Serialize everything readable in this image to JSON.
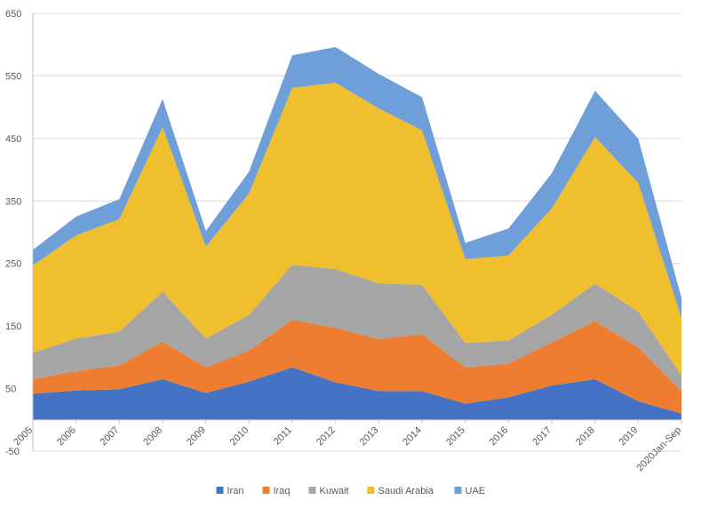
{
  "chart_data": {
    "type": "area",
    "stacked": true,
    "categories": [
      "2005",
      "2006",
      "2007",
      "2008",
      "2009",
      "2010",
      "2011",
      "2012",
      "2013",
      "2014",
      "2015",
      "2016",
      "2017",
      "2018",
      "2019",
      "2020Jan-Sep"
    ],
    "series": [
      {
        "name": "Iran",
        "color": "#4472c4",
        "values": [
          42,
          47,
          49,
          65,
          43,
          61,
          84,
          60,
          46,
          46,
          26,
          36,
          55,
          65,
          30,
          10
        ]
      },
      {
        "name": "Iraq",
        "color": "#ed7d31",
        "values": [
          23,
          31,
          38,
          60,
          41,
          50,
          76,
          87,
          83,
          91,
          58,
          54,
          69,
          93,
          86,
          36
        ]
      },
      {
        "name": "Kuwait",
        "color": "#a5a5a5",
        "values": [
          42,
          52,
          54,
          80,
          46,
          57,
          88,
          94,
          89,
          79,
          39,
          37,
          44,
          60,
          57,
          25
        ]
      },
      {
        "name": "Saudi Arabia",
        "color": "#f0bf2d",
        "values": [
          140,
          165,
          180,
          263,
          147,
          194,
          283,
          298,
          280,
          247,
          134,
          136,
          170,
          234,
          206,
          92
        ]
      },
      {
        "name": "UAE",
        "color": "#6f9fd8",
        "values": [
          25,
          30,
          32,
          45,
          25,
          35,
          52,
          57,
          55,
          53,
          26,
          43,
          56,
          74,
          71,
          32
        ]
      }
    ],
    "y_ticks": [
      "650",
      "550",
      "450",
      "350",
      "250",
      "150",
      "50",
      "-50"
    ],
    "ylim": [
      -50,
      650
    ],
    "grid": true,
    "legend_position": "bottom"
  }
}
